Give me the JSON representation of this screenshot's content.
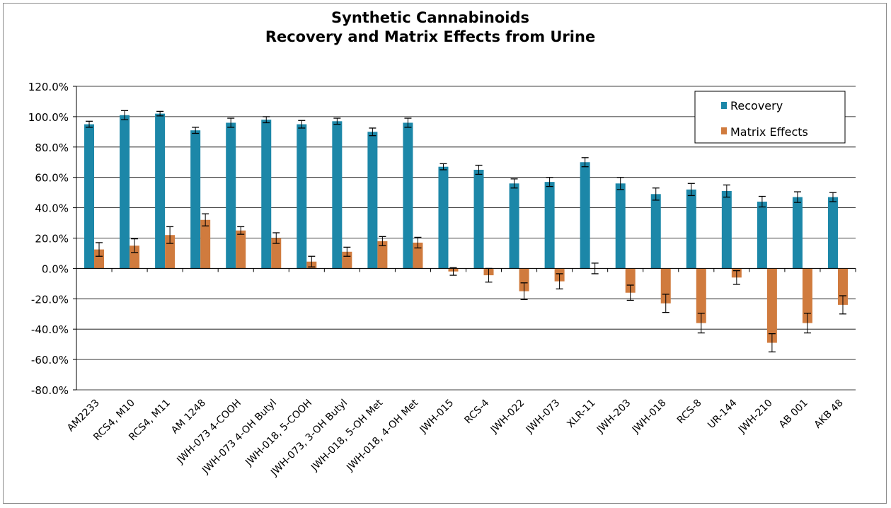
{
  "chart_data": {
    "type": "bar",
    "title": [
      "Synthetic Cannabinoids",
      "Recovery and Matrix Effects from Urine"
    ],
    "xlabel": "",
    "ylabel": "",
    "ylim": [
      -80,
      120
    ],
    "ytick_step": 20,
    "ytick_labels": [
      "120.0%",
      "100.0%",
      "80.0%",
      "60.0%",
      "40.0%",
      "20.0%",
      "0.0%",
      "-20.0%",
      "-40.0%",
      "-60.0%",
      "-80.0%"
    ],
    "grid": true,
    "legend_position": "top-right",
    "categories": [
      "AM2233",
      "RCS4, M10",
      "RCS4, M11",
      "AM 1248",
      "JWH-073 4-COOH",
      "JWH-073 4-OH Butyl",
      "JWH-018, 5-COOH",
      "JWH-073, 3-OH Butyl",
      "JWH-018, 5-OH Met",
      "JWH-018, 4-OH Met",
      "JWH-015",
      "RCS-4",
      "JWH-022",
      "JWH-073",
      "XLR-11",
      "JWH-203",
      "JWH-018",
      "RCS-8",
      "UR-144",
      "JWH-210",
      "AB 001",
      "AKB 48"
    ],
    "series": [
      {
        "name": "Recovery",
        "color": "#1C87A8",
        "values": [
          95,
          101,
          102,
          91,
          96,
          98,
          95,
          97,
          90,
          96,
          67,
          65,
          56,
          57,
          70,
          56,
          49,
          52,
          51,
          44,
          47,
          47
        ],
        "errors": [
          2,
          3,
          1.5,
          2,
          3,
          2,
          2.5,
          2,
          2.5,
          3,
          2,
          3,
          3,
          3,
          3,
          4,
          4,
          4,
          4,
          3.5,
          3.5,
          3
        ]
      },
      {
        "name": "Matrix Effects",
        "color": "#D07B3E",
        "values": [
          12.5,
          15,
          22,
          32,
          25,
          20,
          4.5,
          11,
          18,
          17,
          -2,
          -4.5,
          -15,
          -8.5,
          0,
          -16,
          -23,
          -36,
          -6,
          -49,
          -36,
          -24
        ],
        "errors": [
          4.5,
          4.5,
          5.5,
          4,
          2.5,
          3.5,
          3.5,
          3,
          3,
          3.5,
          2.5,
          4.5,
          5.5,
          5,
          3.5,
          5,
          6,
          6.5,
          4.5,
          6,
          6.5,
          6
        ]
      }
    ]
  }
}
